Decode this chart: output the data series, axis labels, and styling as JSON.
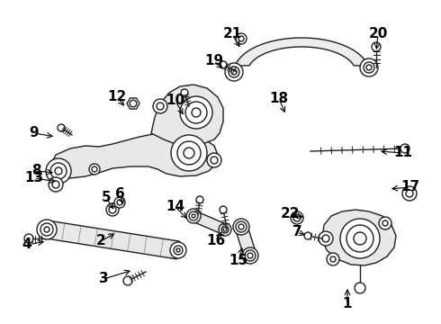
{
  "background_color": "#ffffff",
  "line_color": [
    30,
    30,
    30
  ],
  "fill_color": [
    240,
    240,
    240
  ],
  "label_color": [
    0,
    0,
    0
  ],
  "font_size": 14,
  "parts_labels": {
    "1": [
      386,
      338,
      386,
      318
    ],
    "2": [
      112,
      268,
      130,
      258
    ],
    "3": [
      115,
      310,
      148,
      300
    ],
    "4": [
      30,
      272,
      52,
      268
    ],
    "5": [
      118,
      220,
      128,
      235
    ],
    "6": [
      133,
      215,
      138,
      230
    ],
    "7": [
      330,
      258,
      342,
      262
    ],
    "8": [
      40,
      190,
      62,
      192
    ],
    "9": [
      38,
      148,
      62,
      152
    ],
    "10": [
      195,
      112,
      205,
      130
    ],
    "11": [
      448,
      170,
      420,
      168
    ],
    "12": [
      130,
      108,
      140,
      120
    ],
    "13": [
      38,
      198,
      65,
      202
    ],
    "14": [
      195,
      230,
      210,
      245
    ],
    "15": [
      265,
      290,
      270,
      272
    ],
    "16": [
      240,
      268,
      248,
      255
    ],
    "17": [
      456,
      208,
      432,
      210
    ],
    "18": [
      310,
      110,
      318,
      128
    ],
    "19": [
      238,
      68,
      250,
      78
    ],
    "20": [
      420,
      38,
      418,
      58
    ],
    "21": [
      258,
      38,
      268,
      55
    ],
    "22": [
      322,
      238,
      340,
      242
    ]
  }
}
